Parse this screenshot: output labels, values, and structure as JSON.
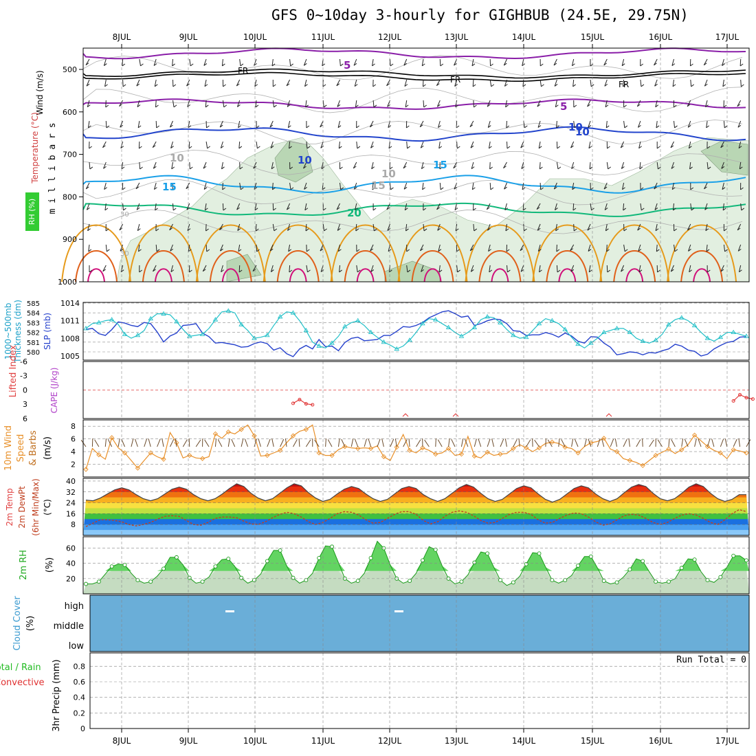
{
  "title": "GFS 0~10day 3-hourly for GIGHBUB (24.5E, 29.75N)",
  "dates": [
    "8JUL",
    "9JUL",
    "10JUL",
    "11JUL",
    "12JUL",
    "13JUL",
    "14JUL",
    "15JUL",
    "16JUL",
    "17JUL"
  ],
  "colors": {
    "purple": "#8a1ea8",
    "black": "#000000",
    "blue": "#2244cc",
    "cyan": "#1aa0e8",
    "green": "#11b87a",
    "orange": "#e69a1a",
    "dkorange": "#e0601a",
    "magenta": "#d0107a",
    "rh_light": "#e2efe0",
    "rh_mid": "#b9d6b4",
    "rh_dark": "#8aa88a",
    "cloud": "#6aaed8",
    "slp": "#2440cc",
    "thick": "#22c0c8",
    "wind": "#e8902a",
    "rh2m": "#22cc22",
    "dewpt": "#c04020",
    "li": "#e03030"
  },
  "panels": {
    "upper_air": {
      "y_axis_label": "m i l l i b a r s",
      "side_labels": [
        "Wind (m/s)",
        "Temperature (°C)",
        "RH (%)"
      ],
      "pressure_ticks": [
        "500",
        "600",
        "700",
        "800",
        "900",
        "1000"
      ],
      "contour_labels": [
        "5",
        "FR",
        "FR",
        "FR",
        "5",
        "10",
        "10",
        "10",
        "15",
        "15",
        "15",
        "20",
        "10",
        "10",
        "30",
        "30"
      ]
    },
    "thickness_slp": {
      "side_labels": [
        "1000~500mb",
        "Thickness (dm)",
        "SLP (mb)"
      ],
      "thick_ticks": [
        "585",
        "584",
        "583",
        "582",
        "581",
        "580"
      ],
      "slp_ticks": [
        "1014",
        "1011",
        "1008",
        "1005"
      ]
    },
    "cape": {
      "side_labels": [
        "Lifted Index",
        "CAPE (J/kg)"
      ],
      "li_ticks": [
        "-6",
        "-3",
        "0",
        "3",
        "6"
      ]
    },
    "wind10m": {
      "side_labels": [
        "10m Wind",
        "Speed",
        "& Barbs",
        "(m/s)"
      ],
      "ticks": [
        "8",
        "6",
        "4",
        "2"
      ]
    },
    "temp2m": {
      "side_labels": [
        "2m Temp",
        "2m DewPt",
        "(6hr Min/Max)",
        "(°C)"
      ],
      "ticks": [
        "40",
        "32",
        "24",
        "16",
        "8"
      ]
    },
    "rh2m": {
      "side_labels": [
        "2m RH",
        "(%)"
      ],
      "ticks": [
        "60",
        "40",
        "20"
      ]
    },
    "cloud": {
      "side_labels": [
        "Cloud Cover",
        "(%)"
      ],
      "levels": [
        "high",
        "middle",
        "low"
      ]
    },
    "precip": {
      "side_labels": [
        "Total / Rain",
        "Convective",
        "3hr Precip (mm)"
      ],
      "ticks": [
        "0.8",
        "0.6",
        "0.4",
        "0.2",
        "0"
      ],
      "run_total": "Run Total = 0"
    }
  },
  "chart_data": [
    {
      "type": "line",
      "title": "1000~500mb Thickness (dm) / SLP (mb)",
      "series": [
        {
          "name": "SLP (mb)",
          "values": [
            1009.5,
            1009.7,
            1008.8,
            1008.5,
            1009.5,
            1010.8,
            1010.6,
            1010.2,
            1010.0,
            1010.7,
            1010.5,
            1009.1,
            1007.4,
            1008.4,
            1008.9,
            1010.2,
            1010.3,
            1010.5,
            1008.9,
            1008.3,
            1007.2,
            1007.3,
            1007.1,
            1006.9,
            1006.5,
            1006.6,
            1007.1,
            1007.4,
            1007.1,
            1006.0,
            1006.4,
            1005.4,
            1004.9,
            1006.2,
            1006.8,
            1006.2,
            1007.8,
            1006.6,
            1006.7,
            1005.9,
            1007.3,
            1008.0,
            1008.2,
            1007.6,
            1007.7,
            1007.8,
            1008.5,
            1008.5,
            1009.2,
            1010.0,
            1009.9,
            1010.2,
            1010.7,
            1011.5,
            1012.0,
            1012.5,
            1012.7,
            1012.2,
            1011.6,
            1011.8,
            1010.2,
            1010.5,
            1011.0,
            1011.3,
            1011.2,
            1010.5,
            1009.3,
            1009.2,
            1008.5,
            1008.6,
            1008.6,
            1009.0,
            1008.7,
            1008.2,
            1008.9,
            1008.4,
            1007.5,
            1007.2,
            1008.3,
            1008.2,
            1007.2,
            1006.5,
            1005.2,
            1005.4,
            1005.7,
            1005.6,
            1005.2,
            1005.6,
            1005.5,
            1005.9,
            1006.2,
            1007.0,
            1006.7,
            1006.0,
            1005.8,
            1005.0,
            1005.3,
            1006.2,
            1006.8,
            1007.3,
            1007.5,
            1008.2,
            1008.3
          ]
        },
        {
          "name": "Thickness (dm)",
          "values": [
            582.4,
            582.9,
            583.0,
            583.2,
            583.3,
            582.8,
            581.8,
            581.4,
            581.7,
            582.2,
            583.4,
            583.9,
            583.9,
            583.8,
            583.1,
            582.3,
            581.6,
            581.7,
            581.8,
            582.4,
            583.3,
            584.1,
            584.2,
            584.0,
            582.8,
            582.2,
            581.4,
            581.5,
            581.7,
            582.7,
            583.6,
            584.1,
            584.0,
            583.2,
            582.2,
            581.0,
            580.6,
            580.4,
            580.9,
            581.6,
            582.6,
            583.0,
            583.2,
            582.7,
            582.0,
            581.5,
            581.0,
            580.7,
            580.3,
            580.6,
            581.2,
            582.0,
            582.9,
            583.4,
            583.3,
            582.9,
            582.5,
            582.0,
            581.6,
            582.0,
            582.5,
            583.3,
            583.6,
            583.5,
            583.0,
            582.3,
            581.7,
            581.4,
            581.5,
            582.2,
            582.9,
            583.4,
            583.2,
            582.9,
            582.3,
            581.5,
            580.8,
            580.4,
            580.9,
            581.4,
            582.0,
            582.2,
            582.4,
            582.4,
            582.0,
            581.4,
            581.1,
            580.9,
            581.2,
            581.8,
            582.8,
            583.3,
            583.5,
            583.2,
            582.7,
            582.0,
            581.4,
            581.1,
            581.5,
            582.0,
            582.0,
            581.8,
            581.6
          ]
        }
      ]
    },
    {
      "type": "line",
      "title": "10m Wind Speed (m/s)",
      "series": [
        {
          "name": "10m Wind Speed",
          "values": [
            1.2,
            4.5,
            3.5,
            2.8,
            6.2,
            4.6,
            3.8,
            2.6,
            1.4,
            2.6,
            3.8,
            3.2,
            2.8,
            7.0,
            5.4,
            3.0,
            3.4,
            3.0,
            2.9,
            3.2,
            6.8,
            6.1,
            7.1,
            6.8,
            7.5,
            8.2,
            6.5,
            3.3,
            3.4,
            3.8,
            4.2,
            5.4,
            6.5,
            7.2,
            7.5,
            8.2,
            3.8,
            3.4,
            3.4,
            4.3,
            4.8,
            4.6,
            4.5,
            4.6,
            4.5,
            4.9,
            3.2,
            2.6,
            4.7,
            6.7,
            4.2,
            3.8,
            4.6,
            4.2,
            3.6,
            3.8,
            4.5,
            3.4,
            3.6,
            6.4,
            3.3,
            3.0,
            3.9,
            3.4,
            3.6,
            3.7,
            4.5,
            5.1,
            4.6,
            4.0,
            4.6,
            5.3,
            5.5,
            5.3,
            4.7,
            4.5,
            3.8,
            4.8,
            5.4,
            5.6,
            6.1,
            4.4,
            4.0,
            2.9,
            2.6,
            2.3,
            1.8,
            2.6,
            3.4,
            3.9,
            4.4,
            3.7,
            4.3,
            5.1,
            6.6,
            5.7,
            4.8,
            4.2,
            3.8,
            2.9,
            4.3,
            4.1,
            3.8
          ]
        }
      ]
    },
    {
      "type": "line",
      "title": "2m Temp / 2m DewPt (°C)",
      "series": [
        {
          "name": "2m Temp",
          "values": [
            26.0,
            25.5,
            27.5,
            30.5,
            33.5,
            35.0,
            33.5,
            30.0,
            27.0,
            25.5,
            27.0,
            30.5,
            34.0,
            35.5,
            34.0,
            30.0,
            27.0,
            25.5,
            27.0,
            30.5,
            34.5,
            38.0,
            36.0,
            31.0,
            27.5,
            25.5,
            27.0,
            31.0,
            35.0,
            38.0,
            36.5,
            31.5,
            27.5,
            25.0,
            26.5,
            30.5,
            34.0,
            36.0,
            34.5,
            30.5,
            27.0,
            25.0,
            26.5,
            30.5,
            34.5,
            36.0,
            34.5,
            30.0,
            27.0,
            25.0,
            27.0,
            31.0,
            35.0,
            37.5,
            35.5,
            31.0,
            27.0,
            25.0,
            26.5,
            30.5,
            34.5,
            36.5,
            35.0,
            30.5,
            26.5,
            24.5,
            26.5,
            30.5,
            34.5,
            36.5,
            35.0,
            30.5,
            27.0,
            25.0,
            27.0,
            31.5,
            35.5,
            37.5,
            36.0,
            31.0,
            27.0,
            25.5,
            27.0,
            31.0,
            35.5,
            38.0,
            36.0,
            31.0,
            27.0,
            25.0,
            26.5,
            30.0,
            30.0
          ]
        },
        {
          "name": "2m DewPt",
          "values": [
            6.5,
            9.0,
            11.5,
            11.5,
            11.0,
            10.0,
            8.0,
            7.0,
            8.0,
            9.5,
            12.0,
            14.0,
            14.5,
            14.0,
            11.0,
            8.0,
            7.5,
            9.5,
            12.5,
            13.5,
            13.5,
            13.0,
            10.5,
            8.5,
            8.0,
            10.0,
            13.0,
            15.5,
            17.0,
            16.0,
            13.5,
            10.0,
            8.0,
            9.5,
            12.5,
            16.0,
            17.5,
            17.0,
            15.0,
            11.5,
            9.0,
            9.5,
            12.5,
            15.5,
            17.5,
            17.5,
            15.5,
            11.0,
            8.5,
            10.0,
            14.0,
            17.0,
            18.0,
            17.0,
            14.5,
            11.0,
            9.0,
            9.5,
            12.5,
            15.5,
            17.0,
            17.0,
            15.5,
            11.5,
            9.0,
            9.5,
            12.5,
            15.0,
            16.5,
            16.0,
            13.5,
            10.0,
            7.5,
            8.5,
            11.5,
            14.5,
            15.5,
            15.0,
            12.5,
            9.5,
            8.0,
            9.5,
            12.5,
            15.0,
            16.0,
            15.0,
            12.5,
            9.5,
            8.0,
            11.5,
            16.0,
            19.0,
            17.5
          ]
        }
      ]
    },
    {
      "type": "line",
      "title": "2m RH (%)",
      "series": [
        {
          "name": "2m RH",
          "values": [
            13,
            13,
            16,
            26,
            36,
            39,
            38,
            27,
            18,
            14,
            16,
            23,
            33,
            48,
            48,
            38,
            21,
            14,
            16,
            22,
            36,
            45,
            46,
            36,
            21,
            14,
            18,
            26,
            43,
            57,
            57,
            37,
            21,
            14,
            18,
            27,
            47,
            63,
            62,
            41,
            20,
            14,
            17,
            27,
            47,
            69,
            60,
            38,
            20,
            14,
            17,
            27,
            44,
            62,
            58,
            37,
            20,
            13,
            16,
            25,
            41,
            55,
            53,
            35,
            18,
            11,
            15,
            23,
            39,
            54,
            53,
            35,
            18,
            14,
            18,
            24,
            37,
            49,
            49,
            34,
            17,
            13,
            15,
            22,
            32,
            46,
            43,
            29,
            16,
            14,
            16,
            20,
            34,
            46,
            45,
            29,
            18,
            15,
            22,
            35,
            50,
            50,
            44
          ]
        }
      ]
    },
    {
      "type": "line",
      "title": "Lifted Index / CAPE (J/kg)",
      "series": [
        {
          "name": "Lifted Index",
          "values": [
            null,
            null,
            null,
            null,
            null,
            null,
            null,
            null,
            null,
            null,
            null,
            null,
            null,
            null,
            null,
            null,
            null,
            null,
            null,
            null,
            null,
            null,
            null,
            null,
            null,
            null,
            null,
            null,
            null,
            null,
            null,
            null,
            2.8,
            2.0,
            2.9,
            3.1,
            null,
            null,
            null,
            null,
            null,
            null,
            null,
            null,
            null,
            null,
            null,
            null,
            null,
            null,
            null,
            null,
            null,
            null,
            null,
            null,
            null,
            null,
            null,
            null,
            null,
            null,
            null,
            null,
            null,
            null,
            null,
            null,
            null,
            null,
            null,
            null,
            null,
            null,
            null,
            null,
            null,
            null,
            null,
            null,
            null,
            null,
            null,
            null,
            null,
            null,
            null,
            null,
            null,
            null,
            null,
            null,
            null,
            null,
            null,
            null,
            null,
            null,
            null,
            null,
            2.3,
            1.0,
            1.6,
            1.9
          ]
        }
      ]
    }
  ]
}
